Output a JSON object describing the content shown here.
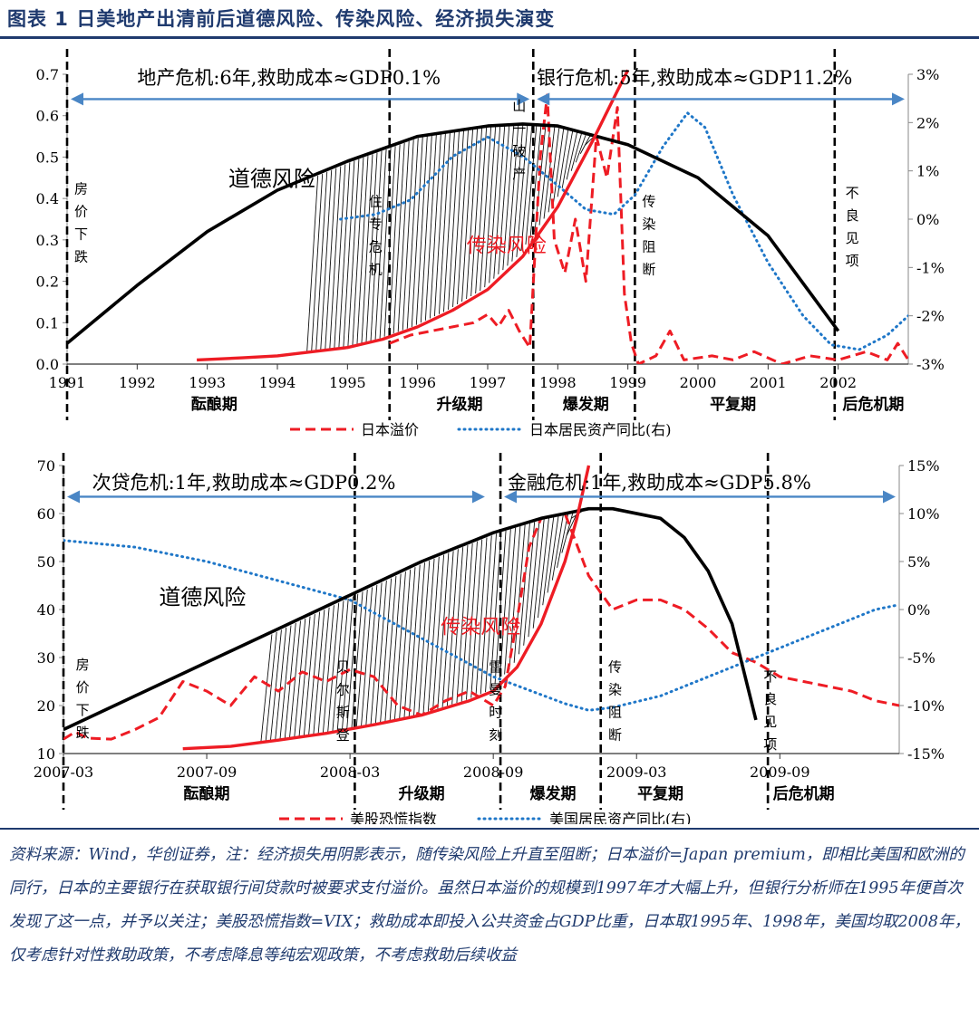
{
  "figure": {
    "title": "图表 1    日美地产出清前后道德风险、传染风险、经济损失演变",
    "note": "资料来源：Wind，华创证券，注：经济损失用阴影表示，随传染风险上升直至阻断；日本溢价=Japan premium，即相比美国和欧洲的同行，日本的主要银行在获取银行间贷款时被要求支付溢价。虽然日本溢价的规模到1997年才大幅上升，但银行分析师在1995年便首次发现了这一点，并予以关注；美股恐慌指数=VIX；救助成本即投入公共资金占GDP比重，日本取1995年、1998年，美国均取2008年，仅考虑针对性救助政策，不考虑降息等纯宏观政策，不考虑救助后续收益"
  },
  "colors": {
    "navy": "#1f3a6e",
    "red": "#ee1c24",
    "blue": "#1f77c8",
    "black": "#000000",
    "arrow": "#4a86c5"
  },
  "chart_data": [
    {
      "type": "line",
      "id": "japan",
      "x_type": "year",
      "xlim": [
        1991,
        2003
      ],
      "ylim": [
        0,
        0.7
      ],
      "y2lim": [
        -3,
        3
      ],
      "x_ticks": [
        "1991",
        "1992",
        "1993",
        "1994",
        "1995",
        "1996",
        "1997",
        "1998",
        "1999",
        "2000",
        "2001",
        "2002"
      ],
      "y_ticks": [
        "0.0",
        "0.1",
        "0.2",
        "0.3",
        "0.4",
        "0.5",
        "0.6",
        "0.7"
      ],
      "y2_ticks": [
        "-3%",
        "-2%",
        "-1%",
        "0%",
        "1%",
        "2%",
        "3%"
      ],
      "series": [
        {
          "name": "日本溢价",
          "axis": "left",
          "style": "dashed",
          "color": "#ee1c24",
          "points": [
            [
              1995.6,
              0.05
            ],
            [
              1995.9,
              0.07
            ],
            [
              1996.2,
              0.08
            ],
            [
              1996.5,
              0.09
            ],
            [
              1996.8,
              0.1
            ],
            [
              1997.0,
              0.12
            ],
            [
              1997.15,
              0.09
            ],
            [
              1997.3,
              0.13
            ],
            [
              1997.45,
              0.08
            ],
            [
              1997.6,
              0.04
            ],
            [
              1997.75,
              0.5
            ],
            [
              1997.85,
              0.65
            ],
            [
              1997.95,
              0.3
            ],
            [
              1998.1,
              0.22
            ],
            [
              1998.25,
              0.35
            ],
            [
              1998.4,
              0.2
            ],
            [
              1998.55,
              0.55
            ],
            [
              1998.7,
              0.45
            ],
            [
              1998.85,
              0.62
            ],
            [
              1998.95,
              0.17
            ],
            [
              1999.05,
              0.05
            ],
            [
              1999.15,
              0.0
            ],
            [
              1999.4,
              0.02
            ],
            [
              1999.6,
              0.08
            ],
            [
              1999.8,
              0.01
            ],
            [
              2000.2,
              0.02
            ],
            [
              2000.5,
              0.01
            ],
            [
              2000.8,
              0.03
            ],
            [
              2001.2,
              0.0
            ],
            [
              2001.6,
              0.02
            ],
            [
              2002.0,
              0.01
            ],
            [
              2002.4,
              0.03
            ],
            [
              2002.7,
              0.01
            ],
            [
              2002.85,
              0.05
            ],
            [
              2003.0,
              0.01
            ]
          ]
        },
        {
          "name": "日本居民资产同比(右)",
          "axis": "right",
          "style": "dotted",
          "color": "#1f77c8",
          "points": [
            [
              1994.9,
              0.0
            ],
            [
              1995.4,
              0.1
            ],
            [
              1995.9,
              0.4
            ],
            [
              1996.5,
              1.3
            ],
            [
              1997.0,
              1.7
            ],
            [
              1997.5,
              1.3
            ],
            [
              1998.0,
              0.7
            ],
            [
              1998.4,
              0.2
            ],
            [
              1998.8,
              0.1
            ],
            [
              1999.1,
              0.5
            ],
            [
              1999.5,
              1.5
            ],
            [
              1999.85,
              2.2
            ],
            [
              2000.1,
              1.9
            ],
            [
              2000.5,
              0.5
            ],
            [
              2001.0,
              -0.9
            ],
            [
              2001.5,
              -2.0
            ],
            [
              2001.9,
              -2.6
            ],
            [
              2002.3,
              -2.7
            ],
            [
              2002.7,
              -2.4
            ],
            [
              2003.0,
              -2.0
            ]
          ]
        },
        {
          "name": "道德风险",
          "axis": "left",
          "style": "solid",
          "color": "#000000",
          "points": [
            [
              1991.0,
              0.05
            ],
            [
              1992.0,
              0.19
            ],
            [
              1993.0,
              0.32
            ],
            [
              1994.0,
              0.42
            ],
            [
              1995.0,
              0.49
            ],
            [
              1996.0,
              0.55
            ],
            [
              1997.0,
              0.575
            ],
            [
              1997.5,
              0.58
            ],
            [
              1998.0,
              0.575
            ],
            [
              1999.0,
              0.53
            ],
            [
              2000.0,
              0.45
            ],
            [
              2001.0,
              0.31
            ],
            [
              2002.0,
              0.08
            ]
          ]
        },
        {
          "name": "传染风险",
          "axis": "left",
          "style": "solid",
          "color": "#ee1c24",
          "points": [
            [
              1992.85,
              0.01
            ],
            [
              1993.5,
              0.015
            ],
            [
              1994.0,
              0.02
            ],
            [
              1994.5,
              0.03
            ],
            [
              1995.0,
              0.04
            ],
            [
              1995.5,
              0.06
            ],
            [
              1996.0,
              0.09
            ],
            [
              1996.5,
              0.13
            ],
            [
              1997.0,
              0.18
            ],
            [
              1997.5,
              0.26
            ],
            [
              1998.0,
              0.38
            ],
            [
              1998.5,
              0.54
            ],
            [
              1998.85,
              0.66
            ],
            [
              1999.0,
              0.71
            ]
          ]
        }
      ],
      "shade": {
        "from": 1994.5,
        "to": 1999.1
      },
      "vlines": [
        1991.0,
        1995.6,
        1997.65,
        1999.1,
        2001.95
      ],
      "annotations": [
        {
          "text": "房价下跌",
          "x": 1991.2,
          "y": 0.33,
          "orient": "v",
          "size": 15
        },
        {
          "text": "住专危机",
          "x": 1995.4,
          "y": 0.3,
          "orient": "v",
          "size": 15
        },
        {
          "text": "山一破产",
          "x": 1997.45,
          "y": 0.53,
          "orient": "v",
          "size": 15
        },
        {
          "text": "传染阻断",
          "x": 1999.3,
          "y": 0.3,
          "orient": "v",
          "size": 15
        },
        {
          "text": "不良见项",
          "x": 2002.2,
          "y": 0.32,
          "orient": "v",
          "size": 15
        },
        {
          "text": "道德风险",
          "x": 1993.3,
          "y": 0.43,
          "orient": "h",
          "size": 24,
          "color": "#000000"
        },
        {
          "text": "传染风险",
          "x": 1996.7,
          "y": 0.27,
          "orient": "h",
          "size": 22,
          "color": "#ee1c24"
        }
      ],
      "arrows": [
        {
          "from": 1991.0,
          "to": 1997.65,
          "y": 0.64,
          "label": "地产危机:6年,救助成本≈GDP0.1%",
          "label_x": 1992.0,
          "label_y": 0.68
        },
        {
          "from": 1997.65,
          "to": 2003.0,
          "y": 0.64,
          "label": "银行危机:5年,救助成本≈GDP11.2%",
          "label_x": 1997.7,
          "label_y": 0.68
        }
      ],
      "phases": [
        {
          "text": "酝酿期",
          "x": 1993.1
        },
        {
          "text": "升级期",
          "x": 1996.6
        },
        {
          "text": "爆发期",
          "x": 1998.4
        },
        {
          "text": "平复期",
          "x": 2000.5
        },
        {
          "text": "后危机期",
          "x": 2002.5
        }
      ],
      "legend": [
        {
          "name": "日本溢价",
          "style": "dashed",
          "color": "#ee1c24"
        },
        {
          "name": "日本居民资产同比(右)",
          "style": "dotted",
          "color": "#1f77c8"
        }
      ],
      "legend_position": "bottom"
    },
    {
      "type": "line",
      "id": "us",
      "x_type": "month",
      "xlim": [
        0,
        35
      ],
      "ylim": [
        10,
        70
      ],
      "y2lim": [
        -15,
        15
      ],
      "x_ticks": [
        {
          "label": "2007-03",
          "pos": 0
        },
        {
          "label": "2007-09",
          "pos": 6
        },
        {
          "label": "2008-03",
          "pos": 12
        },
        {
          "label": "2008-09",
          "pos": 18
        },
        {
          "label": "2009-03",
          "pos": 24
        },
        {
          "label": "2009-09",
          "pos": 30
        }
      ],
      "y_ticks": [
        "10",
        "20",
        "30",
        "40",
        "50",
        "60",
        "70"
      ],
      "y2_ticks": [
        "-15%",
        "-10%",
        "-5%",
        "0%",
        "5%",
        "10%",
        "15%"
      ],
      "series": [
        {
          "name": "美股恐慌指数",
          "axis": "left",
          "style": "dashed",
          "color": "#ee1c24",
          "points": [
            [
              0,
              13
            ],
            [
              0.5,
              14.5
            ],
            [
              1,
              13.2
            ],
            [
              2,
              13
            ],
            [
              3,
              15
            ],
            [
              4,
              17.5
            ],
            [
              5,
              25
            ],
            [
              6,
              23
            ],
            [
              7,
              20
            ],
            [
              8,
              26
            ],
            [
              9,
              23
            ],
            [
              10,
              27
            ],
            [
              11,
              25
            ],
            [
              12,
              27.5
            ],
            [
              13,
              26
            ],
            [
              14,
              20
            ],
            [
              15,
              18
            ],
            [
              16,
              21
            ],
            [
              17,
              23
            ],
            [
              18,
              20
            ],
            [
              18.5,
              24
            ],
            [
              19,
              38
            ],
            [
              19.5,
              53
            ],
            [
              20,
              59
            ],
            [
              21,
              60
            ],
            [
              22,
              47
            ],
            [
              23,
              40
            ],
            [
              24,
              42
            ],
            [
              25,
              42
            ],
            [
              26,
              40
            ],
            [
              27,
              36
            ],
            [
              28,
              31
            ],
            [
              29,
              29
            ],
            [
              30,
              26
            ],
            [
              31,
              25
            ],
            [
              32,
              24
            ],
            [
              33,
              23
            ],
            [
              34,
              21
            ],
            [
              35,
              20
            ]
          ]
        },
        {
          "name": "美国居民资产同比(右)",
          "axis": "right",
          "style": "dotted",
          "color": "#1f77c8",
          "points": [
            [
              0,
              7.2
            ],
            [
              3,
              6.5
            ],
            [
              6,
              5
            ],
            [
              9,
              3
            ],
            [
              12,
              1
            ],
            [
              15,
              -3
            ],
            [
              18,
              -7
            ],
            [
              21,
              -9.8
            ],
            [
              22,
              -10.5
            ],
            [
              23,
              -10.2
            ],
            [
              25,
              -9
            ],
            [
              28,
              -6
            ],
            [
              31,
              -3
            ],
            [
              34,
              0
            ],
            [
              35,
              0.5
            ]
          ]
        },
        {
          "name": "道德风险",
          "axis": "left",
          "style": "solid",
          "color": "#000000",
          "points": [
            [
              0,
              15
            ],
            [
              3,
              22
            ],
            [
              6,
              29
            ],
            [
              9,
              36
            ],
            [
              12,
              43
            ],
            [
              15,
              50
            ],
            [
              18,
              56
            ],
            [
              20,
              59
            ],
            [
              22,
              61
            ],
            [
              23,
              61
            ],
            [
              25,
              59
            ],
            [
              26,
              55
            ],
            [
              27,
              48
            ],
            [
              28,
              37
            ],
            [
              29,
              17
            ]
          ]
        },
        {
          "name": "传染风险",
          "axis": "left",
          "style": "solid",
          "color": "#ee1c24",
          "points": [
            [
              5,
              11
            ],
            [
              7,
              11.5
            ],
            [
              9,
              12.8
            ],
            [
              11,
              14.2
            ],
            [
              13,
              16
            ],
            [
              15,
              18
            ],
            [
              17,
              21
            ],
            [
              18,
              23
            ],
            [
              19,
              28
            ],
            [
              20,
              37
            ],
            [
              21,
              50
            ],
            [
              21.5,
              59
            ],
            [
              22,
              70
            ]
          ]
        }
      ],
      "shade": {
        "from": 8.5,
        "to": 22.5
      },
      "vlines": [
        0,
        12.2,
        18.3,
        22.5,
        29.5
      ],
      "annotations": [
        {
          "text": "房价下跌",
          "x": 0.8,
          "y": 20.5,
          "orient": "v",
          "size": 15
        },
        {
          "text": "贝尔斯登",
          "x": 11.7,
          "y": 20,
          "orient": "v",
          "size": 15
        },
        {
          "text": "雷曼时刻",
          "x": 18.1,
          "y": 20,
          "orient": "v",
          "size": 15
        },
        {
          "text": "传染阻断",
          "x": 23.1,
          "y": 20,
          "orient": "v",
          "size": 15
        },
        {
          "text": "不良见项",
          "x": 29.6,
          "y": 18,
          "orient": "v",
          "size": 15
        },
        {
          "text": "道德风险",
          "x": 4.0,
          "y": 41,
          "orient": "h",
          "size": 24,
          "color": "#000000"
        },
        {
          "text": "传染风险",
          "x": 15.8,
          "y": 35,
          "orient": "h",
          "size": 22,
          "color": "#ee1c24"
        }
      ],
      "arrows": [
        {
          "from": 0,
          "to": 17.8,
          "y": 63.5,
          "label": "次贷危机:1年,救助成本≈GDP0.2%",
          "label_x": 1.2,
          "label_y": 65.5
        },
        {
          "from": 18.3,
          "to": 35,
          "y": 63.5,
          "label": "金融危机:1年,救助成本≈GDP5.8%",
          "label_x": 18.6,
          "label_y": 65.5
        }
      ],
      "phases": [
        {
          "text": "酝酿期",
          "x": 6.0
        },
        {
          "text": "升级期",
          "x": 15.0
        },
        {
          "text": "爆发期",
          "x": 20.5
        },
        {
          "text": "平复期",
          "x": 25.0
        },
        {
          "text": "后危机期",
          "x": 31.0
        }
      ],
      "legend": [
        {
          "name": "美股恐慌指数",
          "style": "dashed",
          "color": "#ee1c24"
        },
        {
          "name": "美国居民资产同比(右)",
          "style": "dotted",
          "color": "#1f77c8"
        }
      ],
      "legend_position": "bottom"
    }
  ]
}
